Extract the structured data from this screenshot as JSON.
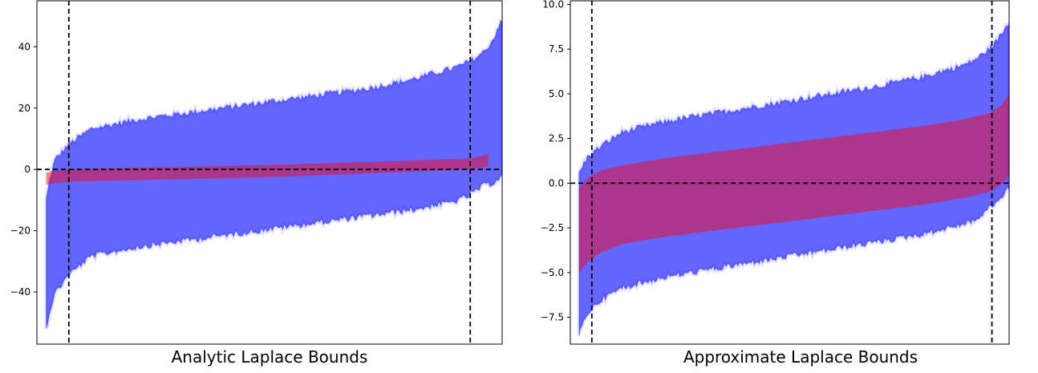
{
  "chart_data": [
    {
      "type": "area",
      "xlabel": "Analytic Laplace Bounds",
      "ylim": [
        -57,
        55
      ],
      "xlim": [
        -0.02,
        1.0
      ],
      "yticks": [
        {
          "value": -40,
          "label": "−40"
        },
        {
          "value": -20,
          "label": "−20"
        },
        {
          "value": 0,
          "label": "0"
        },
        {
          "value": 20,
          "label": "20"
        },
        {
          "value": 40,
          "label": "40"
        }
      ],
      "hline": 0,
      "vlines": [
        0.05,
        0.93
      ],
      "series": [
        {
          "color": "#0000ff",
          "x": [
            0,
            0.01,
            0.02,
            0.05,
            0.1,
            0.2,
            0.3,
            0.4,
            0.5,
            0.6,
            0.7,
            0.8,
            0.9,
            0.93,
            0.96,
            0.98,
            0.99,
            1.0
          ],
          "upper": [
            -10,
            -2,
            3,
            8,
            13,
            16,
            18,
            20,
            22,
            24,
            26,
            29,
            33,
            35,
            38,
            42,
            46,
            48
          ],
          "lower": [
            -52,
            -45,
            -40,
            -34,
            -28,
            -25,
            -23,
            -21,
            -19,
            -17,
            -15,
            -13,
            -10,
            -8,
            -5,
            -4,
            -3,
            -2
          ]
        },
        {
          "color": "#ff0000",
          "x": [
            0,
            0.05,
            0.5,
            0.93,
            0.97
          ],
          "upper": [
            -1,
            0,
            1.5,
            3.5,
            5
          ],
          "lower": [
            -5,
            -4,
            -2.5,
            0,
            1
          ]
        }
      ]
    },
    {
      "type": "area",
      "xlabel": "Approximate Laplace Bounds",
      "ylim": [
        -9.0,
        10.2
      ],
      "xlim": [
        -0.02,
        1.0
      ],
      "yticks": [
        {
          "value": -7.5,
          "label": "−7.5"
        },
        {
          "value": -5.0,
          "label": "−5.0"
        },
        {
          "value": -2.5,
          "label": "−2.5"
        },
        {
          "value": 0.0,
          "label": "0.0"
        },
        {
          "value": 2.5,
          "label": "2.5"
        },
        {
          "value": 5.0,
          "label": "5.0"
        },
        {
          "value": 7.5,
          "label": "7.5"
        },
        {
          "value": 10.0,
          "label": "10.0"
        }
      ],
      "hline": 0,
      "vlines": [
        0.03,
        0.96
      ],
      "series": [
        {
          "color": "#0000ff",
          "x": [
            0,
            0.01,
            0.02,
            0.05,
            0.1,
            0.2,
            0.3,
            0.4,
            0.5,
            0.6,
            0.7,
            0.8,
            0.9,
            0.93,
            0.96,
            0.98,
            1.0
          ],
          "upper": [
            0.5,
            1.0,
            1.4,
            2.0,
            2.8,
            3.4,
            3.8,
            4.2,
            4.6,
            5.0,
            5.4,
            5.9,
            6.6,
            7.0,
            7.6,
            8.2,
            9.0
          ],
          "lower": [
            -8.5,
            -7.8,
            -7.2,
            -6.5,
            -5.8,
            -5.2,
            -4.8,
            -4.4,
            -4.0,
            -3.6,
            -3.2,
            -2.8,
            -2.2,
            -1.9,
            -1.2,
            -0.8,
            -0.2
          ]
        },
        {
          "color": "#ff0000",
          "x": [
            0,
            0.02,
            0.05,
            0.1,
            0.2,
            0.3,
            0.4,
            0.5,
            0.6,
            0.7,
            0.8,
            0.9,
            0.95,
            0.98,
            1.0
          ],
          "upper": [
            -0.3,
            0.3,
            0.7,
            1.0,
            1.4,
            1.7,
            2.0,
            2.3,
            2.6,
            2.9,
            3.2,
            3.6,
            3.9,
            4.3,
            5.0
          ],
          "lower": [
            -5.0,
            -4.4,
            -3.9,
            -3.4,
            -3.0,
            -2.7,
            -2.4,
            -2.1,
            -1.8,
            -1.5,
            -1.2,
            -0.8,
            -0.5,
            -0.1,
            0.4
          ]
        }
      ]
    }
  ]
}
